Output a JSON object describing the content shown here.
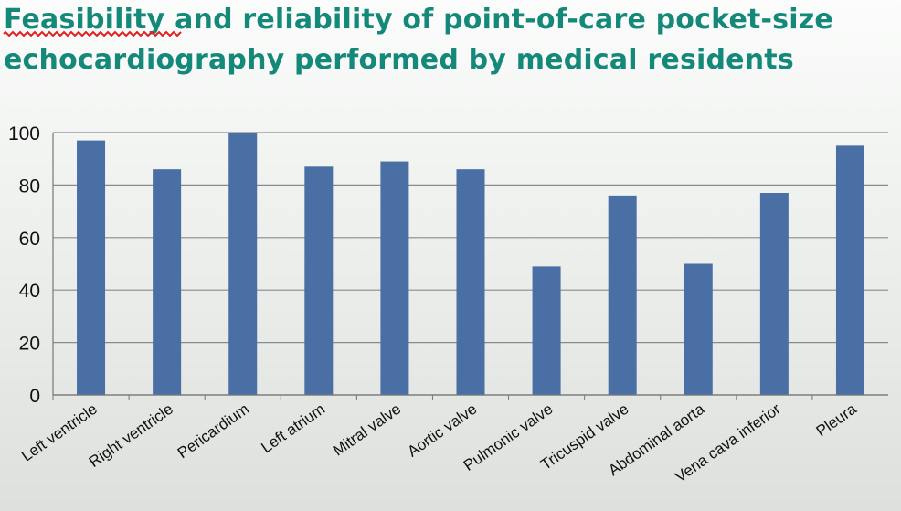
{
  "slide": {
    "title": "Feasibility and reliability of point-of-care pocket-size echocardiography performed by medical residents",
    "title_color": "#14897a",
    "spellcheck_underline_color": "#e02020"
  },
  "chart_data": {
    "type": "bar",
    "title": "",
    "xlabel": "",
    "ylabel": "",
    "ylim": [
      0,
      100
    ],
    "yticks": [
      0,
      20,
      40,
      60,
      80,
      100
    ],
    "grid": true,
    "legend": "none",
    "bar_color": "#4a6fa5",
    "categories": [
      "Left ventricle",
      "Right ventricle",
      "Pericardium",
      "Left atrium",
      "Mitral valve",
      "Aortic valve",
      "Pulmonic valve",
      "Tricuspid valve",
      "Abdominal aorta",
      "Vena cava inferior",
      "Pleura"
    ],
    "values": [
      97,
      86,
      100,
      87,
      89,
      86,
      49,
      76,
      50,
      77,
      95
    ]
  }
}
